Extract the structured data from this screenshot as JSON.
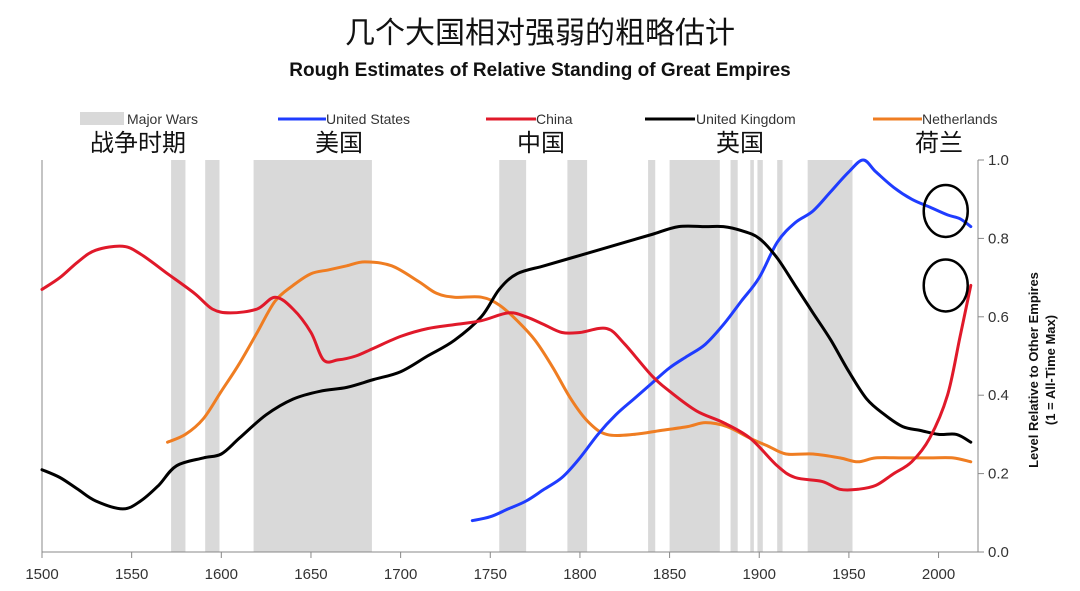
{
  "title_zh": "几个大国相对强弱的粗略估计",
  "title_en": "Rough Estimates of Relative Standing of Great Empires",
  "legend": [
    {
      "key": "wars",
      "label": "Major Wars",
      "label_zh": "战争时期",
      "color": "#d9d9d9"
    },
    {
      "key": "us",
      "label": "United States",
      "label_zh": "美国",
      "color": "#1f3cff"
    },
    {
      "key": "cn",
      "label": "China",
      "label_zh": "中国",
      "color": "#e0192a"
    },
    {
      "key": "uk",
      "label": "United Kingdom",
      "label_zh": "英国",
      "color": "#000000"
    },
    {
      "key": "nl",
      "label": "Netherlands",
      "label_zh": "荷兰",
      "color": "#ef7d22"
    }
  ],
  "chart_data": {
    "type": "line",
    "title": "Rough Estimates of Relative Standing of Great Empires",
    "xlim": [
      1500,
      2022
    ],
    "ylim": [
      0,
      1
    ],
    "x_ticks": [
      "1500",
      "1550",
      "1600",
      "1650",
      "1700",
      "1750",
      "1800",
      "1850",
      "1900",
      "1950",
      "2000"
    ],
    "y_ticks": [
      "0.0",
      "0.2",
      "0.4",
      "0.6",
      "0.8",
      "1.0"
    ],
    "ylabel": "Level Relative to Other Empires",
    "ylabel2": "(1 = All-Time Max)",
    "y_axis_side": "right",
    "major_wars": [
      [
        1572,
        1580
      ],
      [
        1591,
        1599
      ],
      [
        1618,
        1684
      ],
      [
        1755,
        1770
      ],
      [
        1793,
        1804
      ],
      [
        1838,
        1842
      ],
      [
        1850,
        1878
      ],
      [
        1884,
        1888
      ],
      [
        1895,
        1897
      ],
      [
        1899,
        1902
      ],
      [
        1910,
        1913
      ],
      [
        1927,
        1952
      ]
    ],
    "series": [
      {
        "name": "United States",
        "key": "us",
        "color": "#1f3cff",
        "points": [
          [
            1740,
            0.08
          ],
          [
            1750,
            0.09
          ],
          [
            1760,
            0.11
          ],
          [
            1770,
            0.13
          ],
          [
            1780,
            0.16
          ],
          [
            1790,
            0.19
          ],
          [
            1800,
            0.24
          ],
          [
            1810,
            0.3
          ],
          [
            1820,
            0.35
          ],
          [
            1830,
            0.39
          ],
          [
            1840,
            0.43
          ],
          [
            1850,
            0.47
          ],
          [
            1860,
            0.5
          ],
          [
            1870,
            0.53
          ],
          [
            1880,
            0.58
          ],
          [
            1890,
            0.64
          ],
          [
            1900,
            0.7
          ],
          [
            1910,
            0.79
          ],
          [
            1920,
            0.84
          ],
          [
            1930,
            0.87
          ],
          [
            1940,
            0.92
          ],
          [
            1950,
            0.97
          ],
          [
            1958,
            1.0
          ],
          [
            1965,
            0.97
          ],
          [
            1975,
            0.93
          ],
          [
            1985,
            0.9
          ],
          [
            1995,
            0.88
          ],
          [
            2005,
            0.86
          ],
          [
            2012,
            0.85
          ],
          [
            2018,
            0.83
          ]
        ]
      },
      {
        "name": "China",
        "key": "cn",
        "color": "#e0192a",
        "points": [
          [
            1500,
            0.67
          ],
          [
            1510,
            0.7
          ],
          [
            1520,
            0.74
          ],
          [
            1530,
            0.77
          ],
          [
            1545,
            0.78
          ],
          [
            1555,
            0.76
          ],
          [
            1570,
            0.71
          ],
          [
            1585,
            0.66
          ],
          [
            1595,
            0.62
          ],
          [
            1605,
            0.61
          ],
          [
            1620,
            0.62
          ],
          [
            1630,
            0.65
          ],
          [
            1640,
            0.62
          ],
          [
            1650,
            0.56
          ],
          [
            1657,
            0.49
          ],
          [
            1665,
            0.49
          ],
          [
            1675,
            0.5
          ],
          [
            1685,
            0.52
          ],
          [
            1700,
            0.55
          ],
          [
            1715,
            0.57
          ],
          [
            1730,
            0.58
          ],
          [
            1745,
            0.59
          ],
          [
            1760,
            0.61
          ],
          [
            1770,
            0.6
          ],
          [
            1780,
            0.58
          ],
          [
            1790,
            0.56
          ],
          [
            1800,
            0.56
          ],
          [
            1815,
            0.57
          ],
          [
            1825,
            0.53
          ],
          [
            1840,
            0.45
          ],
          [
            1850,
            0.41
          ],
          [
            1865,
            0.36
          ],
          [
            1880,
            0.33
          ],
          [
            1895,
            0.29
          ],
          [
            1910,
            0.22
          ],
          [
            1920,
            0.19
          ],
          [
            1935,
            0.18
          ],
          [
            1945,
            0.16
          ],
          [
            1955,
            0.16
          ],
          [
            1965,
            0.17
          ],
          [
            1975,
            0.2
          ],
          [
            1985,
            0.23
          ],
          [
            1995,
            0.29
          ],
          [
            2005,
            0.4
          ],
          [
            2012,
            0.55
          ],
          [
            2018,
            0.68
          ]
        ]
      },
      {
        "name": "United Kingdom",
        "key": "uk",
        "color": "#000000",
        "points": [
          [
            1500,
            0.21
          ],
          [
            1510,
            0.19
          ],
          [
            1520,
            0.16
          ],
          [
            1530,
            0.13
          ],
          [
            1545,
            0.11
          ],
          [
            1555,
            0.13
          ],
          [
            1565,
            0.17
          ],
          [
            1575,
            0.22
          ],
          [
            1590,
            0.24
          ],
          [
            1600,
            0.25
          ],
          [
            1610,
            0.29
          ],
          [
            1625,
            0.35
          ],
          [
            1640,
            0.39
          ],
          [
            1655,
            0.41
          ],
          [
            1670,
            0.42
          ],
          [
            1685,
            0.44
          ],
          [
            1700,
            0.46
          ],
          [
            1715,
            0.5
          ],
          [
            1730,
            0.54
          ],
          [
            1745,
            0.6
          ],
          [
            1755,
            0.67
          ],
          [
            1765,
            0.71
          ],
          [
            1780,
            0.73
          ],
          [
            1795,
            0.75
          ],
          [
            1810,
            0.77
          ],
          [
            1825,
            0.79
          ],
          [
            1840,
            0.81
          ],
          [
            1855,
            0.83
          ],
          [
            1870,
            0.83
          ],
          [
            1880,
            0.83
          ],
          [
            1890,
            0.82
          ],
          [
            1900,
            0.8
          ],
          [
            1910,
            0.75
          ],
          [
            1920,
            0.68
          ],
          [
            1930,
            0.61
          ],
          [
            1940,
            0.54
          ],
          [
            1950,
            0.46
          ],
          [
            1960,
            0.39
          ],
          [
            1970,
            0.35
          ],
          [
            1980,
            0.32
          ],
          [
            1990,
            0.31
          ],
          [
            2000,
            0.3
          ],
          [
            2010,
            0.3
          ],
          [
            2018,
            0.28
          ]
        ]
      },
      {
        "name": "Netherlands",
        "key": "nl",
        "color": "#ef7d22",
        "points": [
          [
            1570,
            0.28
          ],
          [
            1580,
            0.3
          ],
          [
            1590,
            0.34
          ],
          [
            1600,
            0.41
          ],
          [
            1610,
            0.48
          ],
          [
            1620,
            0.56
          ],
          [
            1630,
            0.64
          ],
          [
            1640,
            0.68
          ],
          [
            1650,
            0.71
          ],
          [
            1660,
            0.72
          ],
          [
            1670,
            0.73
          ],
          [
            1680,
            0.74
          ],
          [
            1695,
            0.73
          ],
          [
            1710,
            0.69
          ],
          [
            1720,
            0.66
          ],
          [
            1730,
            0.65
          ],
          [
            1745,
            0.65
          ],
          [
            1755,
            0.63
          ],
          [
            1765,
            0.59
          ],
          [
            1775,
            0.54
          ],
          [
            1785,
            0.47
          ],
          [
            1795,
            0.39
          ],
          [
            1805,
            0.33
          ],
          [
            1815,
            0.3
          ],
          [
            1830,
            0.3
          ],
          [
            1845,
            0.31
          ],
          [
            1860,
            0.32
          ],
          [
            1870,
            0.33
          ],
          [
            1882,
            0.32
          ],
          [
            1895,
            0.29
          ],
          [
            1905,
            0.27
          ],
          [
            1915,
            0.25
          ],
          [
            1930,
            0.25
          ],
          [
            1945,
            0.24
          ],
          [
            1955,
            0.23
          ],
          [
            1965,
            0.24
          ],
          [
            1980,
            0.24
          ],
          [
            1995,
            0.24
          ],
          [
            2008,
            0.24
          ],
          [
            2018,
            0.23
          ]
        ]
      }
    ],
    "annotations": [
      {
        "type": "circle",
        "x": 2004,
        "y": 0.87
      },
      {
        "type": "circle",
        "x": 2004,
        "y": 0.68
      }
    ]
  }
}
